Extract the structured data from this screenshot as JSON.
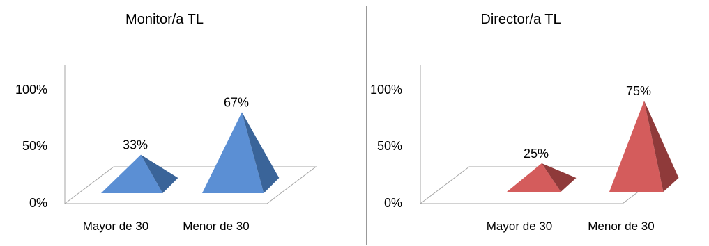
{
  "chart_data": [
    {
      "type": "bar",
      "shape": "pyramid-3d",
      "title": "Monitor/a TL",
      "categories": [
        "Mayor de 30",
        "Menor de 30"
      ],
      "values": [
        33,
        67
      ],
      "data_labels": [
        "33%",
        "67%"
      ],
      "y_ticks": [
        "0%",
        "50%",
        "100%"
      ],
      "ylim": [
        0,
        100
      ],
      "grid": false,
      "colors": {
        "front": "#5b8fd4",
        "side": "#3a6499"
      }
    },
    {
      "type": "bar",
      "shape": "pyramid-3d",
      "title": "Director/a TL",
      "categories": [
        "Mayor de 30",
        "Menor de 30"
      ],
      "values": [
        25,
        75
      ],
      "data_labels": [
        "25%",
        "75%"
      ],
      "y_ticks": [
        "0%",
        "50%",
        "100%"
      ],
      "ylim": [
        0,
        100
      ],
      "grid": false,
      "colors": {
        "front": "#d45c5c",
        "side": "#8f3a3a"
      }
    }
  ]
}
